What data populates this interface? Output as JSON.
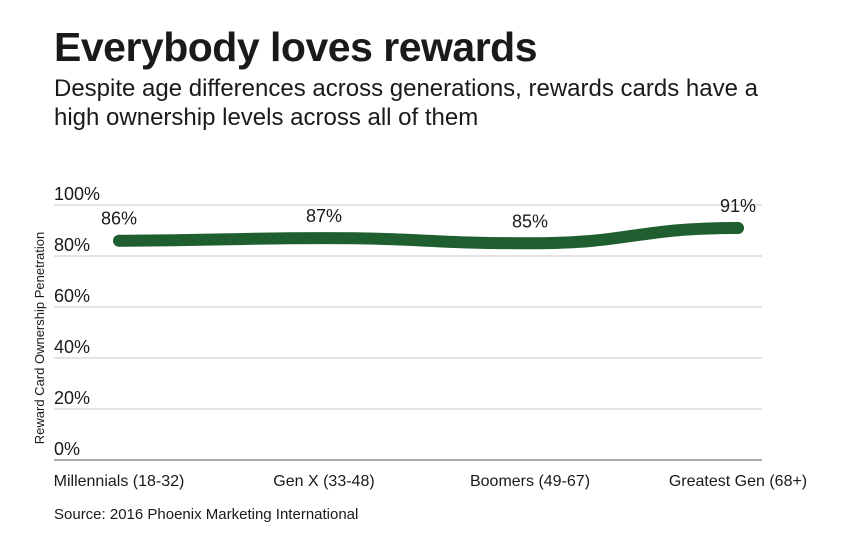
{
  "header": {
    "title": "Everybody loves rewards",
    "subtitle": "Despite age differences across generations, rewards cards have a high ownership levels across all of them"
  },
  "footer": {
    "source": "Source: 2016 Phoenix Marketing International"
  },
  "colors": {
    "line": "#1e5e2f",
    "grid": "#c8c8c8",
    "text": "#1a1a1a"
  },
  "chart_data": {
    "type": "line",
    "title": "Everybody loves rewards",
    "subtitle": "Despite age differences across generations, rewards cards have a high ownership levels across all of them",
    "xlabel": "",
    "ylabel": "Reward Card Ownership Penetration",
    "categories": [
      "Millennials (18-32)",
      "Gen X (33-48)",
      "Boomers (49-67)",
      "Greatest Gen (68+)"
    ],
    "series": [
      {
        "name": "Reward Card Ownership Penetration",
        "values": [
          86,
          87,
          85,
          91
        ],
        "labels": [
          "86%",
          "87%",
          "85%",
          "91%"
        ]
      }
    ],
    "ylim": [
      0,
      100
    ],
    "yticks": [
      0,
      20,
      40,
      60,
      80,
      100
    ],
    "ytick_labels": [
      "0%",
      "20%",
      "40%",
      "60%",
      "80%",
      "100%"
    ],
    "grid": true,
    "legend": "none"
  }
}
